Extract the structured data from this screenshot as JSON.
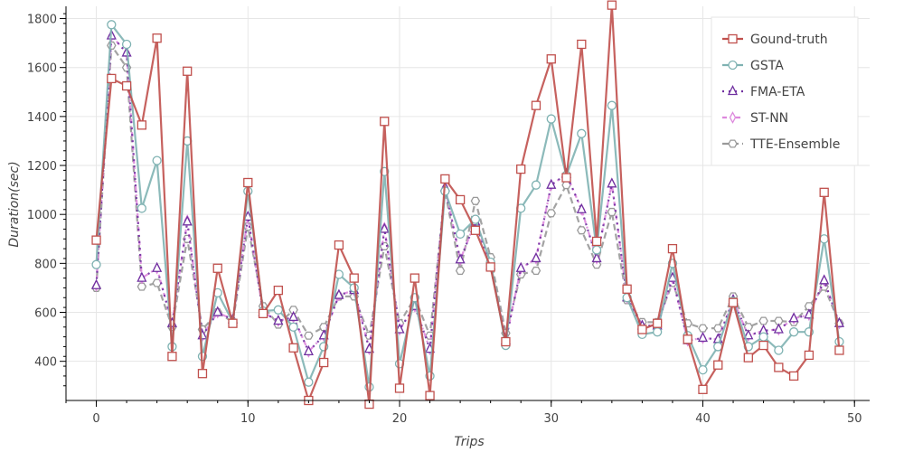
{
  "chart_data": {
    "type": "line",
    "xlabel": "Trips",
    "ylabel": "Duration(sec)",
    "xlim": [
      -2,
      51
    ],
    "ylim": [
      240,
      1850
    ],
    "xticks": [
      0,
      10,
      20,
      30,
      40,
      50
    ],
    "yticks": [
      400,
      600,
      800,
      1000,
      1200,
      1400,
      1600,
      1800
    ],
    "grid": true,
    "legend_position": "top-right",
    "x": [
      0,
      1,
      2,
      3,
      4,
      5,
      6,
      7,
      8,
      9,
      10,
      11,
      12,
      13,
      14,
      15,
      16,
      17,
      18,
      19,
      20,
      21,
      22,
      23,
      24,
      25,
      26,
      27,
      28,
      29,
      30,
      31,
      32,
      33,
      34,
      35,
      36,
      37,
      38,
      39,
      40,
      41,
      42,
      43,
      44,
      45,
      46,
      47,
      48,
      49
    ],
    "series": [
      {
        "name": "Gound-truth",
        "color": "#c0504d",
        "marker": "square",
        "dash": "",
        "values": [
          895,
          1555,
          1525,
          1365,
          1720,
          420,
          1585,
          350,
          780,
          555,
          1130,
          595,
          690,
          455,
          240,
          395,
          875,
          740,
          225,
          1380,
          290,
          740,
          260,
          1145,
          1060,
          935,
          785,
          480,
          1185,
          1445,
          1635,
          1150,
          1695,
          890,
          1855,
          695,
          530,
          555,
          860,
          490,
          285,
          385,
          640,
          415,
          465,
          375,
          340,
          425,
          1090,
          445
        ]
      },
      {
        "name": "GSTA",
        "color": "#7fb2b2",
        "marker": "circle",
        "dash": "",
        "values": [
          795,
          1775,
          1695,
          1025,
          1220,
          460,
          1300,
          420,
          680,
          560,
          1095,
          605,
          610,
          540,
          315,
          460,
          755,
          700,
          295,
          1175,
          390,
          660,
          340,
          1095,
          920,
          980,
          805,
          465,
          1025,
          1120,
          1390,
          1160,
          1330,
          855,
          1445,
          660,
          510,
          520,
          800,
          505,
          365,
          460,
          645,
          460,
          500,
          445,
          520,
          520,
          900,
          480
        ]
      },
      {
        "name": "FMA-ETA",
        "color": "#7030a0",
        "marker": "triangle",
        "dash": "2,5",
        "values": [
          710,
          1730,
          1660,
          740,
          780,
          555,
          970,
          505,
          600,
          570,
          990,
          600,
          565,
          580,
          440,
          505,
          670,
          690,
          450,
          940,
          530,
          625,
          450,
          1110,
          815,
          970,
          790,
          485,
          780,
          820,
          1120,
          1165,
          1020,
          820,
          1125,
          660,
          545,
          545,
          740,
          485,
          495,
          490,
          650,
          505,
          525,
          530,
          575,
          590,
          730,
          555
        ]
      },
      {
        "name": "ST-NN",
        "color": "#dd88dd",
        "marker": "diamond",
        "dash": "5,4,2,4",
        "values": [
          710,
          1730,
          1660,
          740,
          780,
          555,
          975,
          505,
          600,
          570,
          990,
          600,
          565,
          580,
          440,
          505,
          670,
          690,
          450,
          945,
          530,
          625,
          450,
          1110,
          815,
          970,
          790,
          485,
          780,
          820,
          1120,
          1165,
          1020,
          820,
          1125,
          660,
          545,
          545,
          740,
          485,
          495,
          490,
          650,
          505,
          525,
          530,
          575,
          590,
          730,
          555
        ]
      },
      {
        "name": "TTE-Ensemble",
        "color": "#999999",
        "marker": "hexagon",
        "dash": "7,4",
        "values": [
          700,
          1690,
          1600,
          705,
          720,
          540,
          900,
          530,
          600,
          560,
          950,
          625,
          550,
          610,
          505,
          540,
          665,
          665,
          505,
          870,
          555,
          660,
          505,
          1095,
          770,
          1055,
          825,
          515,
          755,
          770,
          1005,
          1120,
          935,
          795,
          1010,
          650,
          560,
          560,
          720,
          555,
          535,
          535,
          665,
          540,
          565,
          565,
          560,
          625,
          705,
          555
        ]
      }
    ]
  }
}
